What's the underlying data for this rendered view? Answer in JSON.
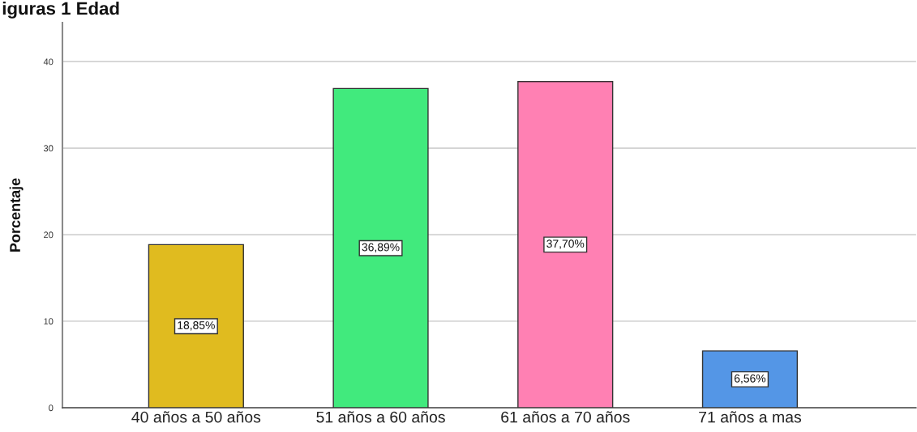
{
  "chart_data": {
    "type": "bar",
    "title": "iguras 1 Edad",
    "ylabel": "Porcentaje",
    "categories": [
      "40 años a 50 años",
      "51 años a 60 años",
      "61 años a 70 años",
      "71 años a mas"
    ],
    "values": [
      18.85,
      36.89,
      37.7,
      6.56
    ],
    "colors": [
      "#e0bb1f",
      "#41ea7d",
      "#ff80b3",
      "#5496e6"
    ],
    "value_labels": [
      "18,85%",
      "36,89%",
      "37,70%",
      "6,56%"
    ],
    "ylim": [
      0,
      44.5
    ],
    "yticks": [
      0,
      10,
      20,
      30,
      40
    ],
    "grid": "y"
  }
}
